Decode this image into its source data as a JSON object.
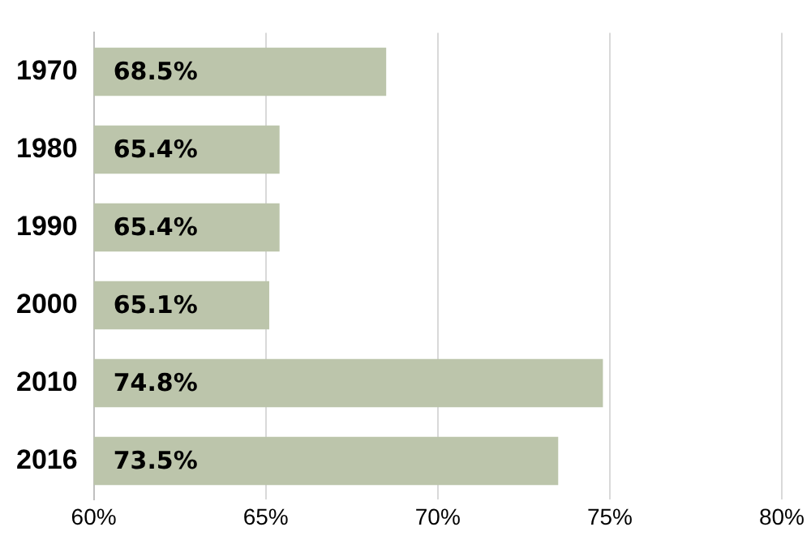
{
  "chart_data": {
    "type": "bar",
    "orientation": "horizontal",
    "categories": [
      "1970",
      "1980",
      "1990",
      "2000",
      "2010",
      "2016"
    ],
    "values": [
      68.5,
      65.4,
      65.4,
      65.1,
      74.8,
      73.5
    ],
    "value_labels": [
      "68.5%",
      "65.4%",
      "65.4%",
      "65.1%",
      "74.8%",
      "73.5%"
    ],
    "color": "#bcc5ab",
    "xlim": [
      60,
      80
    ],
    "xticks": [
      {
        "value": 60,
        "label": "60%"
      },
      {
        "value": 65,
        "label": "65%"
      },
      {
        "value": 70,
        "label": "70%"
      },
      {
        "value": 75,
        "label": "75%"
      },
      {
        "value": 80,
        "label": "80%"
      }
    ],
    "grid": "x",
    "legend": false
  }
}
